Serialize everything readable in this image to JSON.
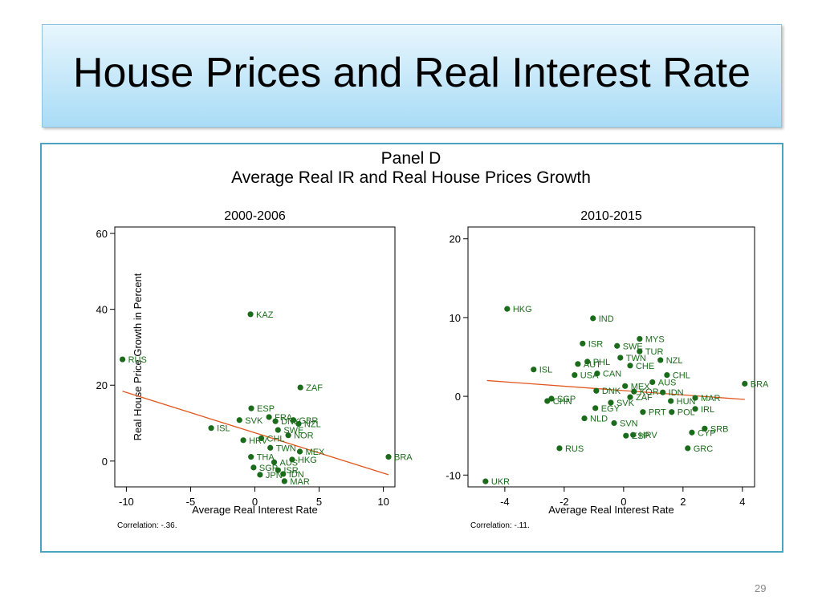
{
  "slide": {
    "title": "House Prices and Real Interest Rate",
    "page_number": "29"
  },
  "figure": {
    "title": "Panel D",
    "subtitle": "Average Real IR and Real House Prices Growth",
    "y_label": "Real House Price Growth in Percent"
  },
  "chart_data": [
    {
      "type": "scatter",
      "title": "2000-2006",
      "x_label": "Average Real Interest Rate",
      "note": "Correlation: -.36.",
      "color": "#1a6b1a",
      "labels": [
        "KAZ",
        "RUS",
        "ZAF",
        "ESP",
        "FRA",
        "DNK",
        "GBR",
        "NZL",
        "SVK",
        "ISL",
        "SWE",
        "NOR",
        "HRV",
        "MEX",
        "HKG",
        "THA",
        "AUS",
        "CHL",
        "TWN",
        "SGP",
        "ISR",
        "JPN",
        "IDN",
        "MAR",
        "BRA"
      ],
      "x": [
        -0.34,
        -10.3,
        3.54,
        -0.28,
        1.1,
        1.6,
        3.0,
        3.4,
        -1.2,
        -3.4,
        1.8,
        2.6,
        -0.9,
        3.5,
        2.9,
        -0.3,
        1.5,
        0.5,
        1.2,
        -0.1,
        1.8,
        0.4,
        2.2,
        2.3,
        10.4
      ],
      "y": [
        38.7,
        26.8,
        19.4,
        13.9,
        11.6,
        10.5,
        10.8,
        9.8,
        10.8,
        8.7,
        8.2,
        6.8,
        5.5,
        2.5,
        0.4,
        1.1,
        -0.3,
        6.0,
        3.5,
        -1.7,
        -2.4,
        -3.6,
        -3.4,
        -5.3,
        1.1
      ],
      "xlim": [
        -10.9,
        10.9
      ],
      "ylim": [
        -6.8,
        61.7
      ],
      "xticks": [
        -10,
        -5,
        0,
        5,
        10
      ],
      "yticks": [
        0,
        20,
        40,
        60
      ],
      "fit_line": {
        "x": [
          -10.3,
          10.4
        ],
        "y": [
          18.4,
          -3.6
        ],
        "color": "#e0561c"
      }
    },
    {
      "type": "scatter",
      "title": "2010-2015",
      "x_label": "Average Real Interest Rate",
      "note": "Correlation: -.11.",
      "color": "#1a6b1a",
      "labels": [
        "HKG",
        "IND",
        "MYS",
        "ISR",
        "SWE",
        "TUR",
        "TWN",
        "NZL",
        "PHL",
        "AUT",
        "CHE",
        "ISL",
        "CHL",
        "BRA",
        "AUS",
        "CAN",
        "USA",
        "MEX",
        "DNK",
        "KOR",
        "IDN",
        "MAR",
        "ZAF",
        "HUN",
        "SGP",
        "CHN",
        "SVK",
        "IRL",
        "EGY",
        "PRT",
        "POL",
        "NLD",
        "SVN",
        "SRB",
        "CYP",
        "HRV",
        "ESP",
        "RUS",
        "GRC",
        "UKR"
      ],
      "x": [
        -3.92,
        -1.03,
        0.54,
        -1.38,
        -0.22,
        0.54,
        -0.11,
        1.24,
        -1.22,
        -1.54,
        0.22,
        -3.03,
        1.46,
        4.08,
        0.97,
        -0.89,
        -1.65,
        0.05,
        -0.92,
        0.35,
        1.32,
        2.41,
        0.22,
        1.59,
        -2.43,
        -2.57,
        -0.43,
        2.41,
        -0.95,
        0.65,
        1.62,
        -1.32,
        -0.32,
        2.73,
        2.3,
        0.32,
        0.08,
        -2.16,
        2.16,
        -4.65
      ],
      "y": [
        11.1,
        9.9,
        7.3,
        6.7,
        6.4,
        5.7,
        4.9,
        4.6,
        4.4,
        4.1,
        3.9,
        3.4,
        2.7,
        1.6,
        1.8,
        2.9,
        2.7,
        1.3,
        0.7,
        0.6,
        0.5,
        -0.2,
        -0.1,
        -0.6,
        -0.3,
        -0.6,
        -0.8,
        -1.6,
        -1.5,
        -2.0,
        -2.0,
        -2.8,
        -3.4,
        -4.1,
        -4.6,
        -4.9,
        -5.0,
        -6.6,
        -6.6,
        -10.8
      ],
      "xlim": [
        -5.24,
        4.41
      ],
      "ylim": [
        -11.5,
        21.5
      ],
      "xticks": [
        -4,
        -2,
        0,
        2,
        4
      ],
      "yticks": [
        -10,
        0,
        10,
        20
      ],
      "fit_line": {
        "x": [
          -4.6,
          4.08
        ],
        "y": [
          2.0,
          -0.4
        ],
        "color": "#e0561c"
      }
    }
  ]
}
